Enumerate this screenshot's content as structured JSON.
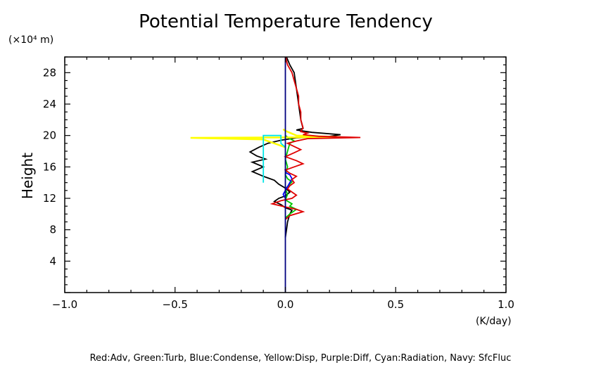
{
  "chart_data": {
    "type": "line",
    "title": "Potential Temperature Tendency",
    "ylabel": "Height",
    "y_unit": "(×10⁴ m)",
    "x_unit": "(K/day)",
    "xlim": [
      -1.0,
      1.0
    ],
    "ylim": [
      0,
      30
    ],
    "x_ticks": [
      -1.0,
      -0.5,
      0.0,
      0.5,
      1.0
    ],
    "x_tick_labels": [
      "−1.0",
      "−0.5",
      "0.0",
      "0.5",
      "1.0"
    ],
    "y_ticks": [
      4,
      8,
      12,
      16,
      20,
      24,
      28
    ],
    "y_tick_labels": [
      "4",
      "8",
      "12",
      "16",
      "20",
      "24",
      "28"
    ],
    "grid": false,
    "legend_text": "Red:Adv, Green:Turb, Blue:Condense, Yellow:Disp, Purple:Diff, Cyan:Radiation, Navy: SfcFluc",
    "series": [
      {
        "color": "#000000",
        "points": [
          [
            0.0,
            7
          ],
          [
            0.005,
            8
          ],
          [
            0.01,
            9
          ],
          [
            0.02,
            10
          ],
          [
            0.03,
            10.5
          ],
          [
            0.0,
            10.8
          ],
          [
            -0.02,
            11.2
          ],
          [
            -0.05,
            11.6
          ],
          [
            -0.03,
            12
          ],
          [
            0.0,
            12.3
          ],
          [
            0.02,
            12.8
          ],
          [
            0.0,
            13.3
          ],
          [
            -0.03,
            13.8
          ],
          [
            -0.05,
            14.3
          ],
          [
            -0.1,
            14.8
          ],
          [
            -0.15,
            15.4
          ],
          [
            -0.1,
            16.0
          ],
          [
            -0.15,
            16.6
          ],
          [
            -0.09,
            17.0
          ],
          [
            -0.13,
            17.4
          ],
          [
            -0.16,
            17.9
          ],
          [
            -0.12,
            18.5
          ],
          [
            -0.08,
            19.0
          ],
          [
            -0.02,
            19.4
          ],
          [
            0.05,
            19.7
          ],
          [
            0.18,
            19.8
          ],
          [
            0.25,
            20.1
          ],
          [
            0.12,
            20.4
          ],
          [
            0.05,
            20.7
          ],
          [
            0.08,
            20.9
          ],
          [
            0.07,
            22
          ],
          [
            0.06,
            24
          ],
          [
            0.05,
            26
          ],
          [
            0.04,
            28
          ],
          [
            0.02,
            29
          ],
          [
            0.005,
            30
          ]
        ]
      },
      {
        "color": "#00c800",
        "points": [
          [
            0.0,
            9.5
          ],
          [
            0.02,
            10
          ],
          [
            0.05,
            10.6
          ],
          [
            0.02,
            11
          ],
          [
            0.03,
            11.3
          ],
          [
            0.0,
            11.8
          ],
          [
            0.01,
            12.5
          ],
          [
            0.0,
            13.2
          ],
          [
            0.02,
            13.8
          ],
          [
            0.03,
            14.1
          ],
          [
            0.01,
            14.5
          ],
          [
            0.0,
            15
          ],
          [
            0.01,
            16
          ],
          [
            0.0,
            17
          ],
          [
            0.01,
            18
          ],
          [
            0.02,
            19
          ],
          [
            0.04,
            19.3
          ],
          [
            0.02,
            19.6
          ],
          [
            0.0,
            20
          ]
        ]
      },
      {
        "color": "#0000ff",
        "points": [
          [
            0.0,
            12
          ],
          [
            -0.01,
            12.5
          ],
          [
            0.0,
            13
          ],
          [
            0.01,
            13.5
          ],
          [
            0.02,
            14
          ],
          [
            0.03,
            14.5
          ],
          [
            0.02,
            15
          ],
          [
            0.0,
            15.3
          ]
        ]
      },
      {
        "color": "#ffff00",
        "points": [
          [
            0.0,
            18.5
          ],
          [
            -0.1,
            19.5
          ],
          [
            -0.43,
            19.7
          ],
          [
            -0.05,
            19.75
          ],
          [
            0.25,
            19.8
          ],
          [
            0.05,
            20
          ],
          [
            0.0,
            20.6
          ],
          [
            -0.01,
            20.8
          ]
        ]
      },
      {
        "color": "#00e5e5",
        "points": [
          [
            -0.1,
            14
          ],
          [
            -0.1,
            20
          ],
          [
            -0.02,
            20
          ],
          [
            -0.02,
            19.0
          ],
          [
            0.0,
            18.5
          ]
        ]
      },
      {
        "color": "#e00000",
        "points": [
          [
            0.0,
            9.3
          ],
          [
            0.02,
            9.8
          ],
          [
            0.08,
            10.3
          ],
          [
            0.05,
            10.6
          ],
          [
            0.0,
            10.9
          ],
          [
            -0.06,
            11.3
          ],
          [
            -0.02,
            11.7
          ],
          [
            0.03,
            12.0
          ],
          [
            0.05,
            12.4
          ],
          [
            0.03,
            12.8
          ],
          [
            0.01,
            13.2
          ],
          [
            0.02,
            13.6
          ],
          [
            0.04,
            14.0
          ],
          [
            0.03,
            14.4
          ],
          [
            0.05,
            14.8
          ],
          [
            0.02,
            15.2
          ],
          [
            0.0,
            15.6
          ],
          [
            0.04,
            16.0
          ],
          [
            0.08,
            16.4
          ],
          [
            0.05,
            16.8
          ],
          [
            0.0,
            17.3
          ],
          [
            0.04,
            17.8
          ],
          [
            0.07,
            18.2
          ],
          [
            0.04,
            18.6
          ],
          [
            0.01,
            19.0
          ],
          [
            0.05,
            19.3
          ],
          [
            0.1,
            19.6
          ],
          [
            0.34,
            19.75
          ],
          [
            0.15,
            19.9
          ],
          [
            0.08,
            20.1
          ],
          [
            0.1,
            20.3
          ],
          [
            0.07,
            20.5
          ],
          [
            0.08,
            21
          ],
          [
            0.07,
            22
          ],
          [
            0.07,
            23
          ],
          [
            0.06,
            24
          ],
          [
            0.06,
            25
          ],
          [
            0.05,
            26
          ],
          [
            0.04,
            27
          ],
          [
            0.03,
            28
          ],
          [
            0.01,
            29
          ],
          [
            0.005,
            29.5
          ],
          [
            0.003,
            30
          ]
        ]
      },
      {
        "color": "#000080",
        "points": [
          [
            0.0,
            0
          ],
          [
            0.0,
            30
          ]
        ]
      }
    ]
  }
}
